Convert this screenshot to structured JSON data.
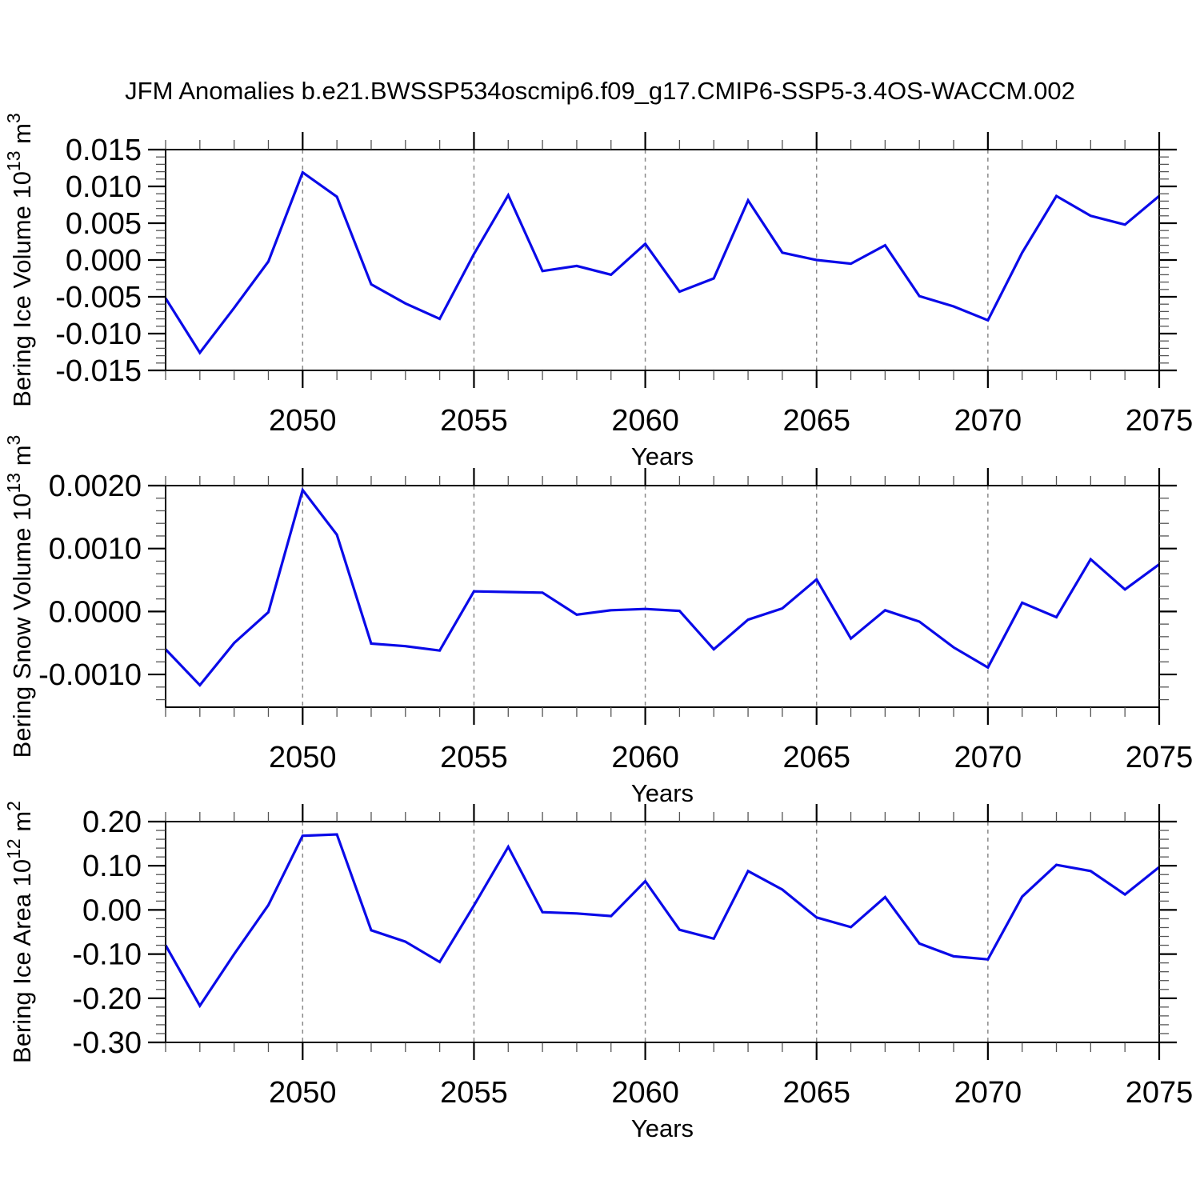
{
  "page": {
    "title": "JFM Anomalies b.e21.BWSSP534oscmip6.f09_g17.CMIP6-SSP5-3.4OS-WACCM.002"
  },
  "style": {
    "line_color": "#0a0ae8",
    "grid_color": "#8a8a8a",
    "axis_color": "#000000",
    "minor_tick_color": "#555555",
    "text_color": "#000000"
  },
  "chart_data": [
    {
      "type": "line",
      "name": "bering-ice-volume",
      "ylabel": "Bering Ice Volume 10^13 m^3",
      "ylabel_parts": {
        "pre": "Bering Ice Volume 10",
        "sup1": "13",
        "mid": " m",
        "sup2": "3"
      },
      "xlabel": "Years",
      "x": [
        2046,
        2047,
        2048,
        2049,
        2050,
        2051,
        2052,
        2053,
        2054,
        2055,
        2056,
        2057,
        2058,
        2059,
        2060,
        2061,
        2062,
        2063,
        2064,
        2065,
        2066,
        2067,
        2068,
        2069,
        2070,
        2071,
        2072,
        2073,
        2074,
        2075
      ],
      "values": [
        -0.0052,
        -0.0126,
        -0.0065,
        -0.0002,
        0.0119,
        0.0086,
        -0.0033,
        -0.0059,
        -0.008,
        0.0008,
        0.0088,
        -0.0015,
        -0.0008,
        -0.002,
        0.0022,
        -0.0043,
        -0.0025,
        0.0081,
        0.001,
        0.0,
        -0.0005,
        0.002,
        -0.0049,
        -0.0063,
        -0.0082,
        0.001,
        0.0087,
        0.006,
        0.0048,
        0.0087
      ],
      "xlim": [
        2046,
        2075
      ],
      "ylim": [
        -0.015,
        0.015
      ],
      "yticks": [
        0.015,
        0.01,
        0.005,
        0.0,
        -0.005,
        -0.01,
        -0.015
      ],
      "ytick_labels": [
        "0.015",
        "0.010",
        "0.005",
        "0.000",
        "-0.005",
        "-0.010",
        "-0.015"
      ],
      "ytick_step": 0.005,
      "yminor_step": 0.001,
      "xticks": [
        2050,
        2055,
        2060,
        2065,
        2070,
        2075
      ],
      "xtick_labels": [
        "2050",
        "2055",
        "2060",
        "2065",
        "2070",
        "2075"
      ],
      "grid_years": [
        2050,
        2055,
        2060,
        2065,
        2070
      ],
      "grid": "vertical-dashed",
      "legend": "none"
    },
    {
      "type": "line",
      "name": "bering-snow-volume",
      "ylabel": "Bering Snow Volume 10^13 m^3",
      "ylabel_parts": {
        "pre": "Bering Snow Volume 10",
        "sup1": "13",
        "mid": " m",
        "sup2": "3"
      },
      "xlabel": "Years",
      "x": [
        2046,
        2047,
        2048,
        2049,
        2050,
        2051,
        2052,
        2053,
        2054,
        2055,
        2056,
        2057,
        2058,
        2059,
        2060,
        2061,
        2062,
        2063,
        2064,
        2065,
        2066,
        2067,
        2068,
        2069,
        2070,
        2071,
        2072,
        2073,
        2074,
        2075
      ],
      "values": [
        -0.0006,
        -0.00117,
        -0.0005,
        -1e-05,
        0.00193,
        0.00122,
        -0.00051,
        -0.00055,
        -0.00062,
        0.00032,
        0.00031,
        0.0003,
        -5e-05,
        2e-05,
        4e-05,
        1e-05,
        -0.0006,
        -0.00013,
        5e-05,
        0.00051,
        -0.00043,
        2e-05,
        -0.00016,
        -0.00057,
        -0.00089,
        0.00014,
        -9e-05,
        0.00083,
        0.00035,
        0.00075
      ],
      "xlim": [
        2046,
        2075
      ],
      "ylim": [
        -0.00152,
        0.002
      ],
      "yticks": [
        0.002,
        0.001,
        0.0,
        -0.001
      ],
      "ytick_labels": [
        "0.0020",
        "0.0010",
        "0.0000",
        "-0.0010"
      ],
      "ytick_step": 0.001,
      "yminor_step": 0.0002,
      "xticks": [
        2050,
        2055,
        2060,
        2065,
        2070,
        2075
      ],
      "xtick_labels": [
        "2050",
        "2055",
        "2060",
        "2065",
        "2070",
        "2075"
      ],
      "grid_years": [
        2050,
        2055,
        2060,
        2065,
        2070
      ],
      "grid": "vertical-dashed",
      "legend": "none"
    },
    {
      "type": "line",
      "name": "bering-ice-area",
      "ylabel": "Bering Ice Area 10^12 m^2",
      "ylabel_parts": {
        "pre": "Bering Ice Area 10",
        "sup1": "12",
        "mid": " m",
        "sup2": "2"
      },
      "xlabel": "Years",
      "x": [
        2046,
        2047,
        2048,
        2049,
        2050,
        2051,
        2052,
        2053,
        2054,
        2055,
        2056,
        2057,
        2058,
        2059,
        2060,
        2061,
        2062,
        2063,
        2064,
        2065,
        2066,
        2067,
        2068,
        2069,
        2070,
        2071,
        2072,
        2073,
        2074,
        2075
      ],
      "values": [
        -0.08,
        -0.217,
        -0.1,
        0.011,
        0.168,
        0.171,
        -0.046,
        -0.072,
        -0.118,
        0.01,
        0.143,
        -0.005,
        -0.008,
        -0.014,
        0.065,
        -0.045,
        -0.065,
        0.088,
        0.046,
        -0.017,
        -0.039,
        0.029,
        -0.076,
        -0.105,
        -0.112,
        0.03,
        0.102,
        0.088,
        0.035,
        0.097
      ],
      "xlim": [
        2046,
        2075
      ],
      "ylim": [
        -0.3,
        0.2
      ],
      "yticks": [
        0.2,
        0.1,
        0.0,
        -0.1,
        -0.2,
        -0.3
      ],
      "ytick_labels": [
        "0.20",
        "0.10",
        "0.00",
        "-0.10",
        "-0.20",
        "-0.30"
      ],
      "ytick_step": 0.1,
      "yminor_step": 0.02,
      "xticks": [
        2050,
        2055,
        2060,
        2065,
        2070,
        2075
      ],
      "xtick_labels": [
        "2050",
        "2055",
        "2060",
        "2065",
        "2070",
        "2075"
      ],
      "grid_years": [
        2050,
        2055,
        2060,
        2065,
        2070
      ],
      "grid": "vertical-dashed",
      "legend": "none"
    }
  ]
}
